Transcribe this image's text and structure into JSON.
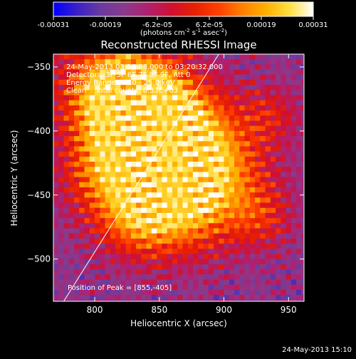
{
  "colorbar": {
    "stops": [
      "#0000ff",
      "#3a20c8",
      "#6a3aa0",
      "#8a3a8a",
      "#b02070",
      "#d01030",
      "#e82000",
      "#ff4000",
      "#ff8000",
      "#ffb000",
      "#ffe040",
      "#ffffff"
    ],
    "ticks": [
      "-0.00031",
      "-0.00019",
      "-6.2e-05",
      "6.2e-05",
      "0.00019",
      "0.00031"
    ],
    "units_main": "(photons cm",
    "units_sup1": "-2",
    "units_mid": " s",
    "units_sup2": "-1",
    "units_end": " asec",
    "units_sup3": "-2",
    "units_close": ")"
  },
  "chart_data": {
    "type": "heatmap",
    "title": "Reconstructed RHESSI Image",
    "xlabel": "Heliocentric X (arcsec)",
    "ylabel": "Heliocentric Y (arcsec)",
    "xlim": [
      768,
      962
    ],
    "ylim": [
      -533,
      -340
    ],
    "xticks": [
      800,
      850,
      900,
      950
    ],
    "yticks": [
      -350,
      -400,
      -450,
      -500
    ],
    "value_range": [
      -0.00031,
      0.00031
    ],
    "peak": {
      "x": 855,
      "y": -405
    },
    "limb_line": [
      {
        "x": 776,
        "y": -533
      },
      {
        "x": 896,
        "y": -340
      }
    ],
    "annotations": [
      "24-May-2013 03:16:08.000 to 03:20:32.000",
      "Detectors: 3F 5F 6F 7F 8F 9F, Att 0",
      "Energy Range: 12.0 - 25.0 keV",
      "Clean    Total counts: 6.33E+03"
    ],
    "peak_label": "Position of Peak = [855,-405]"
  },
  "footer": {
    "timestamp": "24-May-2013 15:10"
  }
}
